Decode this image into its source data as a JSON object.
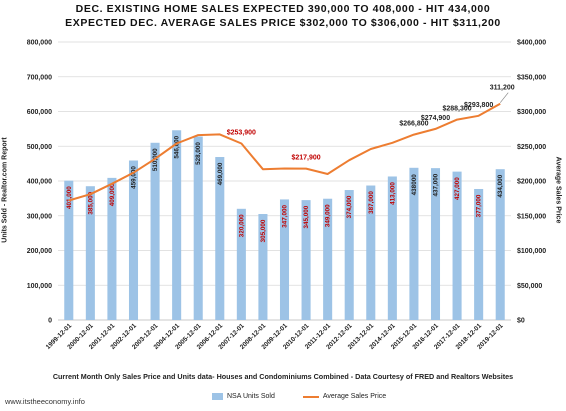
{
  "title_line1": "DEC. EXISTING HOME SALES  EXPECTED 390,000 TO 408,000 - HIT 434,000",
  "title_line2": "EXPECTED DEC. AVERAGE SALES PRICE  $302,000 TO $306,000 - HIT $311,200",
  "footer_note": "Current Month Only Sales Price and Units data- Houses and Condominiums Combined - Data Courtesy of FRED and Realtors Websites",
  "watermark": "www.itstheeconomy.info",
  "colors": {
    "bar": "#9dc3e6",
    "line": "#ed7d31",
    "bar_label": "#c00000",
    "grid": "#d9d9d9"
  },
  "chart_data": {
    "type": "bar",
    "categories": [
      "1999-12-01",
      "2000-12-01",
      "2001-12-01",
      "2002-12-01",
      "2003-12-01",
      "2004-12-01",
      "2005-12-01",
      "2006-12-01",
      "2007-12-01",
      "2008-12-01",
      "2009-12-01",
      "2010-12-01",
      "2011-12-01",
      "2012-12-01",
      "2013-12-01",
      "2014-12-01",
      "2015-12-01",
      "2016-12-01",
      "2017-12-01",
      "2018-12-01",
      "2019-12-01"
    ],
    "series": [
      {
        "name": "NSA Units Sold",
        "type": "bar",
        "axis": "left",
        "values": [
          401000,
          385000,
          409000,
          459000,
          510000,
          546000,
          528000,
          469000,
          320000,
          305000,
          347000,
          345000,
          349000,
          374000,
          387000,
          413000,
          438000,
          437000,
          427000,
          377000,
          434000
        ],
        "labels": [
          "401,000",
          "385,000",
          "409,000",
          "459,000",
          "510,000",
          "546,000",
          "528,000",
          "469,000",
          "320,000",
          "305,000",
          "347,000",
          "345,000",
          "349,000",
          "374,000",
          "387,000",
          "413,000",
          "438000",
          "437,000",
          "427,000",
          "377,000",
          "434,000"
        ],
        "label_color_class": [
          "red",
          "red",
          "red",
          "dark",
          "dark",
          "dark",
          "dark",
          "dark",
          "red",
          "red",
          "red",
          "red",
          "red",
          "red",
          "red",
          "red",
          "dark",
          "dark",
          "red",
          "red",
          "dark"
        ]
      },
      {
        "name": "Average Sales Price",
        "type": "line",
        "axis": "right",
        "values": [
          172000,
          181000,
          196000,
          212000,
          232000,
          254000,
          266000,
          267000,
          253900,
          217000,
          218000,
          217900,
          210000,
          230000,
          246000,
          255000,
          266800,
          274900,
          288300,
          293800,
          311200
        ]
      }
    ],
    "annotations": [
      {
        "index": 8,
        "text": "$253,900",
        "color": "#c00000"
      },
      {
        "index": 11,
        "text": "$217,900",
        "color": "#c00000"
      },
      {
        "index": 16,
        "text": "$266,800",
        "color": "#222222"
      },
      {
        "index": 17,
        "text": "$274,900",
        "color": "#222222"
      },
      {
        "index": 18,
        "text": "$288,300",
        "color": "#222222"
      },
      {
        "index": 19,
        "text": "$293,800",
        "color": "#222222"
      },
      {
        "index": 20,
        "text": "311,200",
        "color": "#222222"
      }
    ],
    "ylabel": "Units Sold - Realtor.com Report",
    "ylabel_right": "Average Sales Price",
    "ylim": [
      0,
      800000
    ],
    "ylim_right": [
      0,
      400000
    ],
    "yticks": [
      "0",
      "100,000",
      "200,000",
      "300,000",
      "400,000",
      "500,000",
      "600,000",
      "700,000",
      "800,000"
    ],
    "yticks_right": [
      "$0",
      "$50,000",
      "$100,000",
      "$150,000",
      "$200,000",
      "$250,000",
      "$300,000",
      "$350,000",
      "$400,000"
    ],
    "grid": true,
    "legend": "bottom"
  }
}
